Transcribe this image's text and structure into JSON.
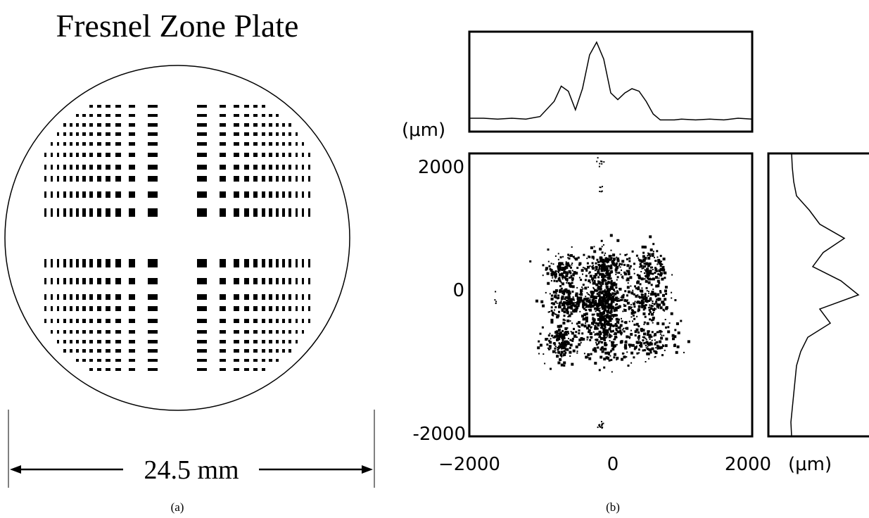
{
  "panel_a": {
    "title": "Fresnel Zone Plate",
    "dimension_label": "24.5 mm",
    "caption": "(a)"
  },
  "panel_b": {
    "caption": "(b)",
    "unit_label_top": "(μm)",
    "x_ticks": [
      "−2000",
      "0",
      "2000"
    ],
    "x_unit": "(μm)",
    "y_ticks": [
      "2000",
      "0",
      "-2000"
    ]
  },
  "chart_data": [
    {
      "type": "line",
      "title": "",
      "xlabel": "",
      "ylabel": "",
      "x": [
        -2000,
        -1800,
        -1600,
        -1400,
        -1200,
        -1000,
        -800,
        -700,
        -600,
        -500,
        -400,
        -300,
        -200,
        -100,
        0,
        100,
        200,
        300,
        400,
        500,
        600,
        700,
        800,
        900,
        1000,
        1200,
        1400,
        1600,
        1800,
        2000
      ],
      "series": [
        {
          "values": [
            0.1,
            0.1,
            0.09,
            0.1,
            0.09,
            0.12,
            0.3,
            0.48,
            0.42,
            0.2,
            0.45,
            0.85,
            1.0,
            0.8,
            0.4,
            0.32,
            0.4,
            0.45,
            0.42,
            0.3,
            0.15,
            0.08,
            0.08,
            0.08,
            0.09,
            0.08,
            0.09,
            0.08,
            0.1,
            0.09
          ]
        }
      ]
    },
    {
      "type": "scatter",
      "xlim": [
        -2000,
        2000
      ],
      "ylim": [
        -2000,
        2000
      ]
    },
    {
      "type": "line",
      "title": "",
      "xlabel": "",
      "ylabel": "",
      "y": [
        2000,
        1800,
        1600,
        1400,
        1200,
        1000,
        800,
        600,
        400,
        200,
        0,
        -200,
        -400,
        -600,
        -800,
        -1000,
        -1200,
        -1400,
        -1600,
        -1800,
        -2000
      ],
      "series": [
        {
          "values": [
            0.05,
            0.06,
            0.08,
            0.12,
            0.3,
            0.45,
            0.8,
            0.5,
            0.35,
            0.75,
            1.0,
            0.45,
            0.6,
            0.28,
            0.18,
            0.12,
            0.1,
            0.08,
            0.06,
            0.04,
            0.05
          ]
        }
      ]
    }
  ]
}
